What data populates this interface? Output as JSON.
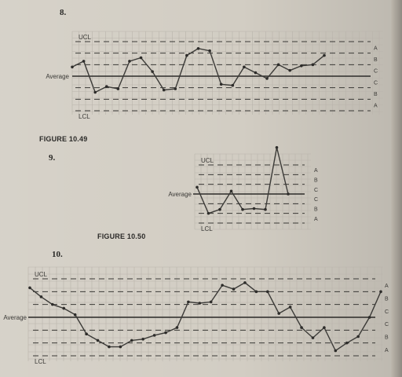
{
  "problems": [
    "8.",
    "9.",
    "10."
  ],
  "captions": [
    "FIGURE 10.49",
    "FIGURE 10.50"
  ],
  "chart_data": [
    {
      "type": "line",
      "label_ucl": "UCL",
      "label_lcl": "LCL",
      "label_avg": "Average",
      "zones_upper": [
        "A",
        "B",
        "C"
      ],
      "zones_lower": [
        "C",
        "B",
        "A"
      ],
      "ylim": [
        -3,
        3
      ],
      "values": [
        0.8,
        1.3,
        -1.4,
        -0.9,
        -1.1,
        1.3,
        1.6,
        0.4,
        -1.2,
        -1.1,
        1.8,
        2.4,
        2.2,
        -0.7,
        -0.8,
        0.8,
        0.3,
        -0.2,
        1.0,
        0.5,
        0.9,
        1.0,
        1.8
      ]
    },
    {
      "type": "line",
      "label_ucl": "UCL",
      "label_lcl": "LCL",
      "label_avg": "Average",
      "zones_upper": [
        "A",
        "B",
        "C"
      ],
      "zones_lower": [
        "C",
        "B",
        "A"
      ],
      "ylim": [
        -3,
        3
      ],
      "values": [
        0.7,
        -2.0,
        -1.6,
        0.3,
        -1.6,
        -1.5,
        -1.6,
        4.8,
        0.0
      ]
    },
    {
      "type": "line",
      "label_ucl": "UCL",
      "label_lcl": "LCL",
      "label_avg": "Average",
      "zones_upper": [
        "A",
        "B",
        "C"
      ],
      "zones_lower": [
        "C",
        "B",
        "A"
      ],
      "ylim": [
        -3,
        3
      ],
      "values": [
        2.3,
        1.6,
        1.0,
        0.7,
        0.2,
        -1.3,
        -1.8,
        -2.3,
        -2.3,
        -1.8,
        -1.7,
        -1.4,
        -1.2,
        -0.8,
        1.2,
        1.1,
        1.2,
        2.5,
        2.2,
        2.7,
        2.0,
        2.0,
        0.3,
        0.8,
        -0.8,
        -1.6,
        -0.8,
        -2.6,
        -2.0,
        -1.5,
        0.0,
        2.0
      ]
    }
  ]
}
